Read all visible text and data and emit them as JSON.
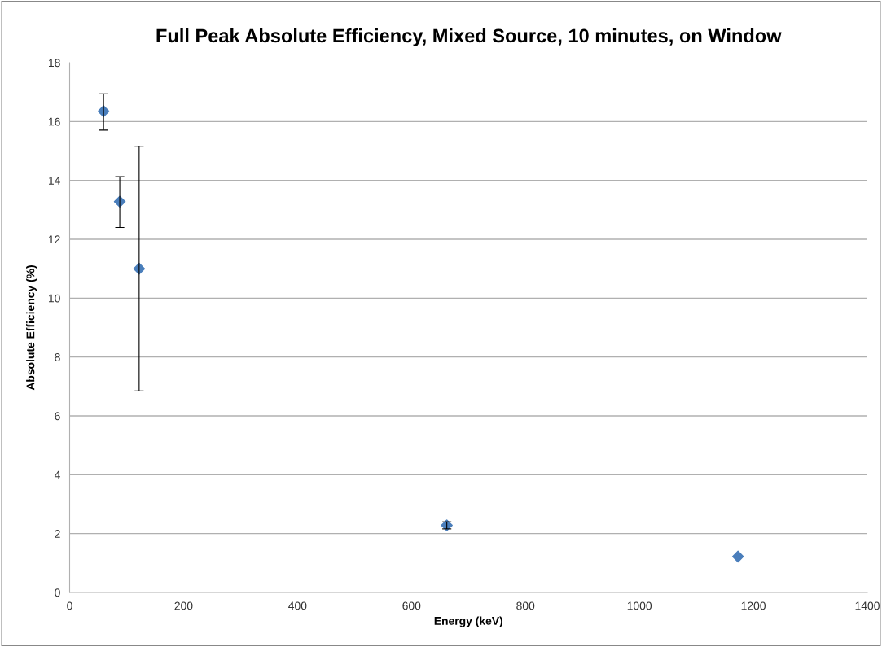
{
  "chart_data": {
    "type": "scatter",
    "title": "Full Peak Absolute Efficiency, Mixed Source, 10 minutes, on Window",
    "xlabel": "Energy (keV)",
    "ylabel": "Absolute Efficiency (%)",
    "x": [
      59.5,
      88,
      122,
      662,
      1173
    ],
    "values": [
      16.35,
      13.28,
      11.0,
      2.28,
      1.22
    ],
    "errors": [
      [
        15.71,
        16.94
      ],
      [
        12.4,
        14.13
      ],
      [
        6.85,
        15.16
      ],
      0.12,
      null
    ],
    "color": "#4a7ebb",
    "marker": "diamond",
    "xlim": [
      0,
      1400
    ],
    "xticks": [
      0,
      200,
      400,
      600,
      800,
      1000,
      1200,
      1400
    ],
    "ylim": [
      0,
      18
    ],
    "yticks": [
      0,
      2,
      4,
      6,
      8,
      10,
      12,
      14,
      16,
      18
    ],
    "grid": "y",
    "legend": false
  }
}
